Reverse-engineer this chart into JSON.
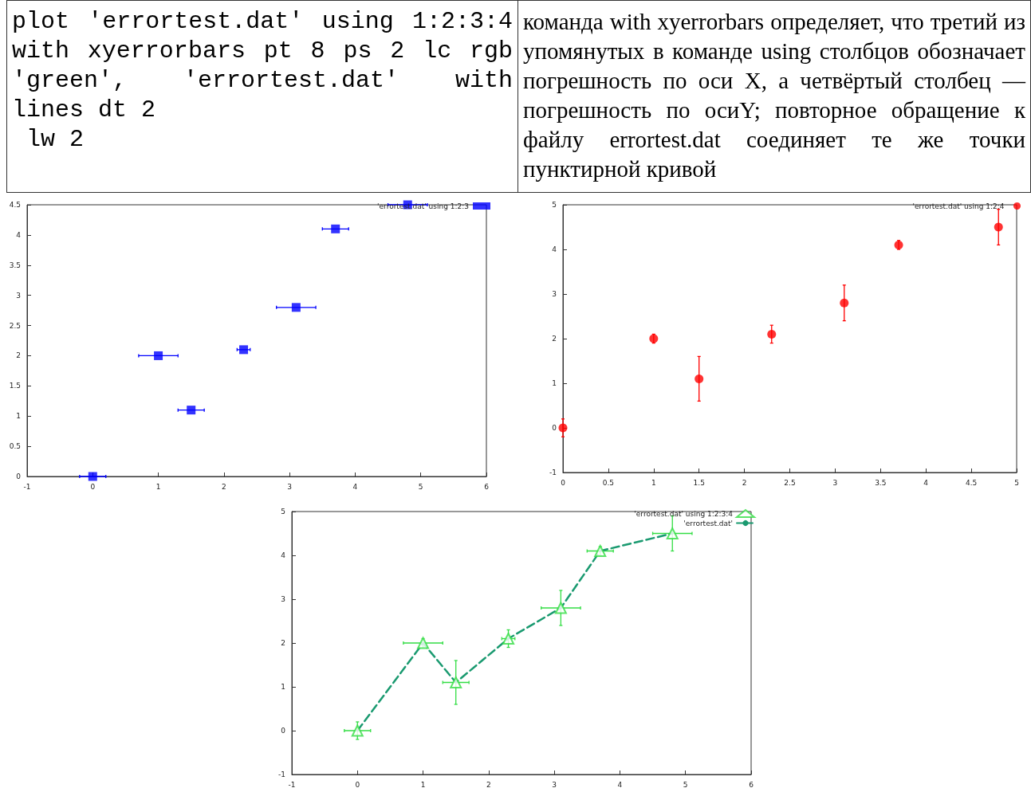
{
  "chart_data": [
    {
      "type": "other",
      "annotations": [
        "plot 'errortest.dat' using 1:2:3:4 with xyerrorbars pt 8 ps 2 lc rgb 'green', 'errortest.dat' with lines dt 2\n lw 2",
        "команда with xyerrorbars определяет, что третий из упомянутых в команде using столбцов обозначает погрешность по оси X, а четвёртый столбец — погрешность по осиY; повторное обращение к файлу errortest.dat соединяет те же точки пунктирной кривой"
      ]
    },
    {
      "type": "scatter",
      "x": [
        0,
        1,
        1.5,
        2.3,
        3.1,
        3.7,
        4.8
      ],
      "marker": "square",
      "legend": "top right",
      "grid": false,
      "xlim": [
        -1,
        6
      ],
      "xticks": [
        -1,
        0,
        1,
        2,
        3,
        4,
        5,
        6
      ],
      "ylim": [
        0,
        4.5
      ],
      "yticks": [
        0,
        0.5,
        1,
        1.5,
        2,
        2.5,
        3,
        3.5,
        4,
        4.5
      ],
      "series": [
        {
          "name": "'errortest.dat' using 1:2:3",
          "color": "#0000ff",
          "values": [
            0,
            2,
            1.1,
            2.1,
            2.8,
            4.1,
            4.5
          ],
          "xerrors": [
            0.2,
            0.3,
            0.2,
            0.1,
            0.3,
            0.2,
            0.3
          ]
        }
      ]
    },
    {
      "type": "scatter",
      "x": [
        0,
        1,
        1.5,
        2.3,
        3.1,
        3.7,
        4.8
      ],
      "marker": "circle",
      "legend": "top right",
      "grid": false,
      "xlim": [
        0,
        5
      ],
      "xticks": [
        0,
        0.5,
        1,
        1.5,
        2,
        2.5,
        3,
        3.5,
        4,
        4.5,
        5
      ],
      "ylim": [
        -1,
        5
      ],
      "yticks": [
        -1,
        0,
        1,
        2,
        3,
        4,
        5
      ],
      "series": [
        {
          "name": "'errortest.dat' using 1:2:4",
          "color": "#ff0000",
          "values": [
            0,
            2,
            1.1,
            2.1,
            2.8,
            4.1,
            4.5
          ],
          "errors": [
            0.2,
            0.1,
            0.5,
            0.2,
            0.4,
            0.1,
            0.4
          ]
        }
      ]
    },
    {
      "type": "scatter",
      "x": [
        0,
        1,
        1.5,
        2.3,
        3.1,
        3.7,
        4.8
      ],
      "legend": "top right",
      "grid": false,
      "xlim": [
        -1,
        6
      ],
      "xticks": [
        -1,
        0,
        1,
        2,
        3,
        4,
        5,
        6
      ],
      "ylim": [
        -1,
        5
      ],
      "yticks": [
        -1,
        0,
        1,
        2,
        3,
        4,
        5
      ],
      "series": [
        {
          "name": "'errortest.dat' using 1:2:3:4",
          "color": "#33dd44",
          "marker": "triangle",
          "values": [
            0,
            2,
            1.1,
            2.1,
            2.8,
            4.1,
            4.5
          ],
          "xerrors": [
            0.2,
            0.3,
            0.2,
            0.1,
            0.3,
            0.2,
            0.3
          ],
          "errors": [
            0.2,
            0.1,
            0.5,
            0.2,
            0.4,
            0.1,
            0.4
          ]
        },
        {
          "name": "'errortest.dat'",
          "type": "line",
          "color": "#1a9a70",
          "marker": "none",
          "line_style": "dashed",
          "values": [
            0,
            2,
            1.1,
            2.1,
            2.8,
            4.1,
            4.5
          ]
        }
      ]
    }
  ]
}
